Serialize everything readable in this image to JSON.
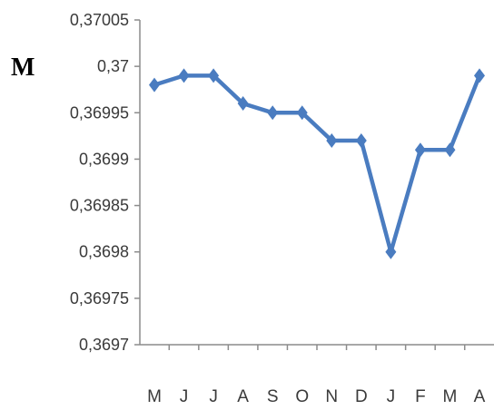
{
  "chart_data": {
    "type": "line",
    "title": "",
    "ylabel": "M",
    "xlabel": "",
    "categories": [
      "M",
      "J",
      "J",
      "A",
      "S",
      "O",
      "N",
      "D",
      "J",
      "F",
      "M",
      "A"
    ],
    "series": [
      {
        "values": [
          0.36998,
          0.36999,
          0.36999,
          0.36996,
          0.36995,
          0.36995,
          0.36992,
          0.36992,
          0.3698,
          0.36991,
          0.36991,
          0.36999
        ]
      }
    ],
    "yticks": [
      "0,3697",
      "0,36975",
      "0,3698",
      "0,36985",
      "0,3699",
      "0,36995",
      "0,37",
      "0,37005"
    ],
    "ylim": [
      0.3697,
      0.37005
    ],
    "grid": false,
    "colors": {
      "line": "#4a7cc0",
      "axis": "#8c8c8c"
    }
  }
}
